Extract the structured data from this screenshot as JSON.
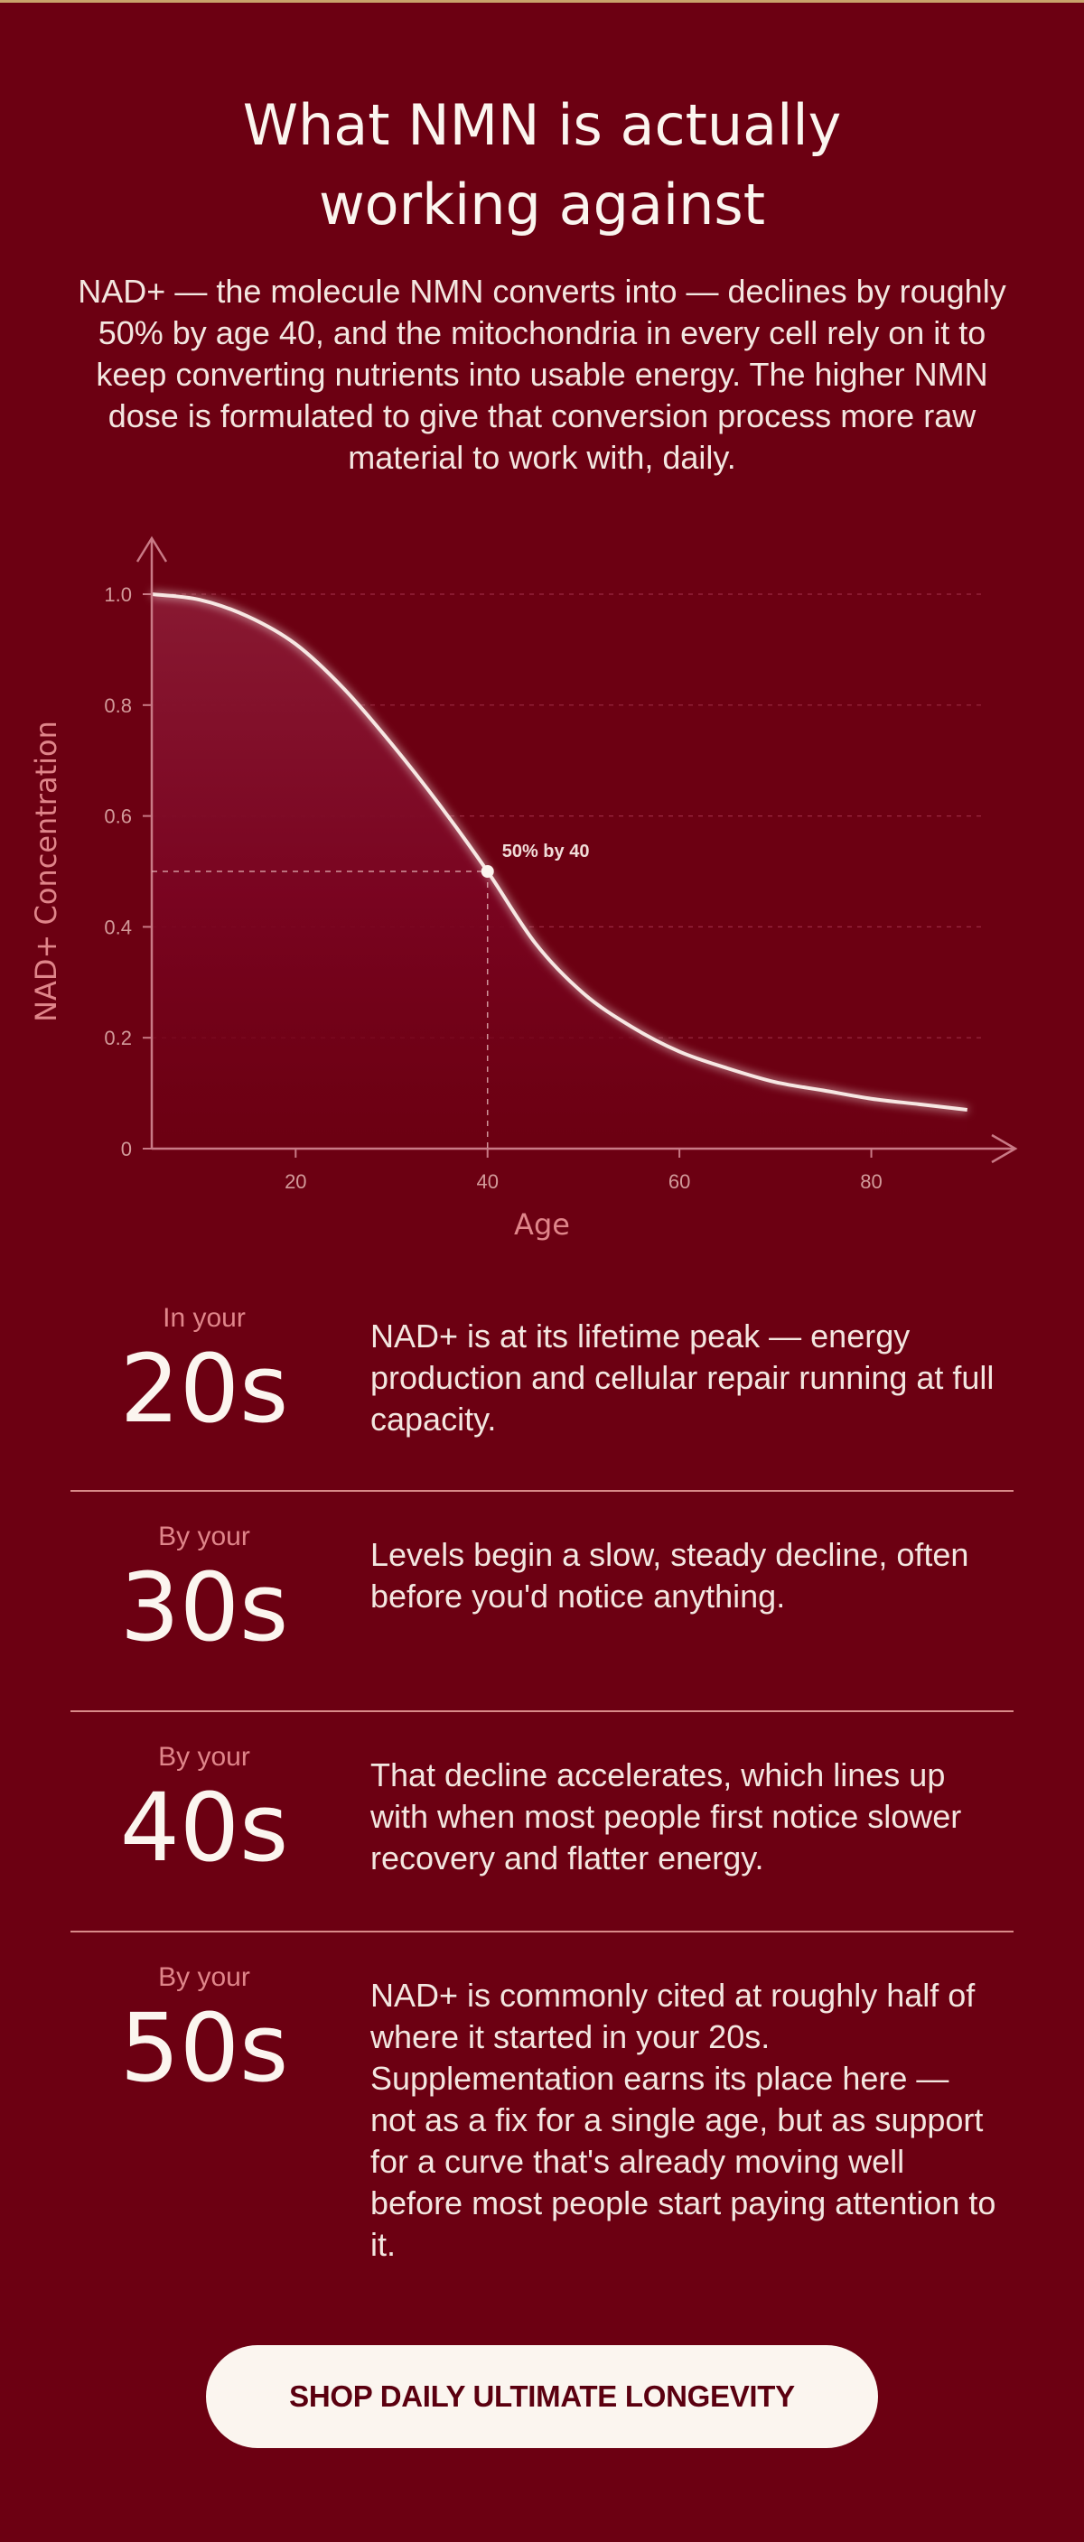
{
  "header": {
    "title_line1": "What NMN is actually",
    "title_line2": "working against",
    "intro": "NAD+ — the molecule NMN converts into — declines by roughly 50% by age 40, and the mitochondria in every cell rely on it to keep converting nutrients into usable energy. The higher NMN dose is formulated to give that conversion process more raw material to work with, daily."
  },
  "chart_data": {
    "type": "area",
    "xlabel": "Age",
    "ylabel": "NAD+ Concentration",
    "xlim": [
      5,
      92
    ],
    "ylim": [
      0,
      1.0
    ],
    "x_ticks": [
      20,
      40,
      60,
      80
    ],
    "x_tick_labels": [
      "20",
      "40",
      "60",
      "80"
    ],
    "y_ticks": [
      0,
      0.2,
      0.4,
      0.6,
      0.8,
      1.0
    ],
    "y_tick_labels": [
      "0",
      "0.2",
      "0.4",
      "0.6",
      "0.8",
      "1.0"
    ],
    "series": [
      {
        "x": [
          5,
          10,
          15,
          20,
          25,
          30,
          35,
          40,
          45,
          50,
          55,
          60,
          65,
          70,
          75,
          80,
          85,
          90
        ],
        "y": [
          1.0,
          0.99,
          0.96,
          0.91,
          0.83,
          0.73,
          0.62,
          0.5,
          0.37,
          0.28,
          0.22,
          0.175,
          0.145,
          0.12,
          0.105,
          0.09,
          0.08,
          0.07
        ]
      }
    ],
    "annotation": {
      "x": 40,
      "y": 0.5,
      "text": "50% by 40"
    },
    "grid": "dashed horizontal",
    "line_color": "#f7e7e3",
    "fill_color": "#8a0a27"
  },
  "stages": [
    {
      "prefix": "In your",
      "decade": "20s",
      "text": "NAD+ is at its lifetime peak — energy production and cellular repair running at full capacity."
    },
    {
      "prefix": "By your",
      "decade": "30s",
      "text": "Levels begin a slow, steady decline, often before you'd notice anything."
    },
    {
      "prefix": "By your",
      "decade": "40s",
      "text": "That decline accelerates, which lines up with when most people first notice slower recovery and flatter energy."
    },
    {
      "prefix": "By your",
      "decade": "50s",
      "text": "NAD+ is commonly cited at roughly half of where it started in your 20s. Supplementation earns its place here — not as a fix for a single age, but as support for a curve that's already moving well before most people start paying attention to it."
    }
  ],
  "cta": {
    "label": "SHOP DAILY ULTIMATE LONGEVITY"
  },
  "colors": {
    "background": "#6c0012",
    "accent": "#e0858a",
    "text": "#fbf5ef",
    "button_bg": "#fbf5ef",
    "button_text": "#5b0010"
  }
}
